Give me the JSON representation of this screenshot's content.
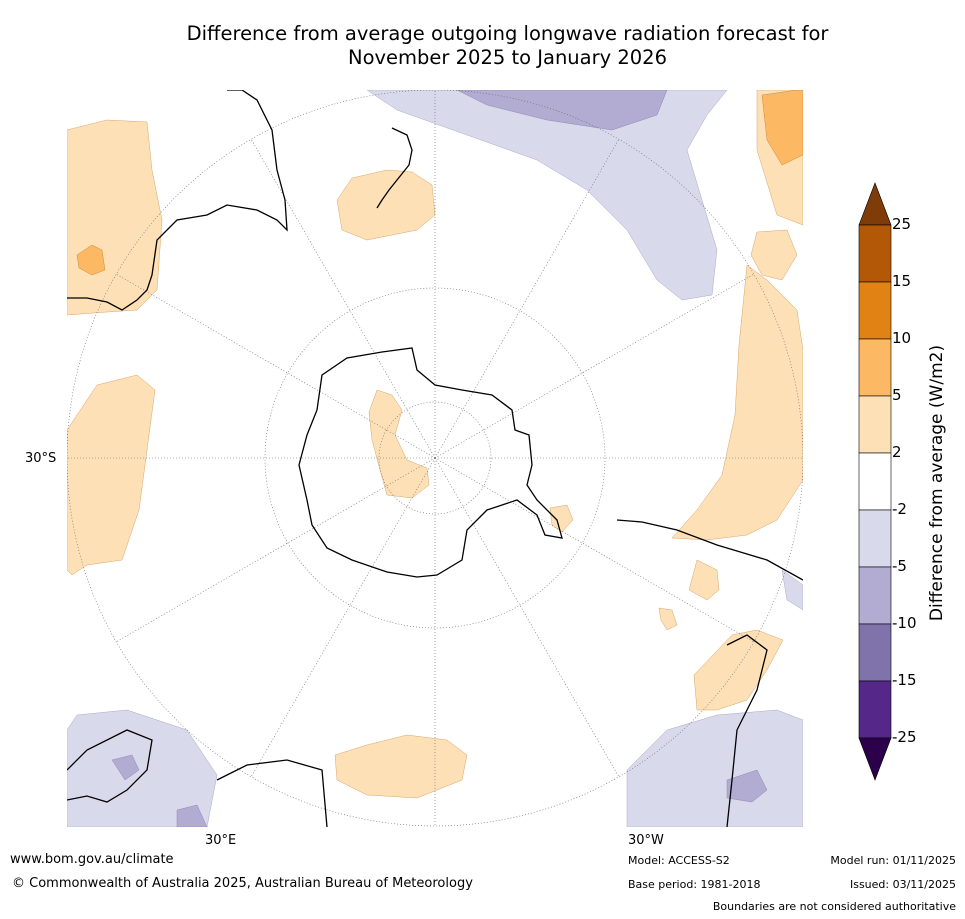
{
  "title": {
    "line1": "Difference from average outgoing longwave radiation forecast for",
    "line2": "November 2025 to January 2026"
  },
  "map": {
    "projection": "south-polar-stereographic",
    "labels": {
      "lat_30s": "30°S",
      "lon_30e": "30°E",
      "lon_30w": "30°W"
    }
  },
  "colorbar": {
    "title": "Difference from average (W/m2)",
    "ticks": [
      "25",
      "15",
      "10",
      "5",
      "2",
      "-2",
      "-5",
      "-10",
      "-15",
      "-25"
    ],
    "colors": {
      "over": "#7f3b08",
      "b15_25": "#b35806",
      "b10_15": "#e08214",
      "b5_10": "#fdb863",
      "b2_5": "#fee0b6",
      "bm2_2": "#ffffff",
      "bm5_m2": "#d8daeb",
      "bm10_m5": "#b2abd2",
      "bm15_m10": "#8073ac",
      "bm25_m15": "#542788",
      "under": "#2d004b"
    }
  },
  "footer": {
    "website": "www.bom.gov.au/climate",
    "copyright": "© Commonwealth of Australia 2025, Australian Bureau of Meteorology",
    "model": "Model: ACCESS-S2",
    "base_period": "Base period: 1981-2018",
    "model_run": "Model run: 01/11/2025",
    "issued": "Issued: 03/11/2025",
    "disclaimer": "Boundaries are not considered authoritative"
  }
}
